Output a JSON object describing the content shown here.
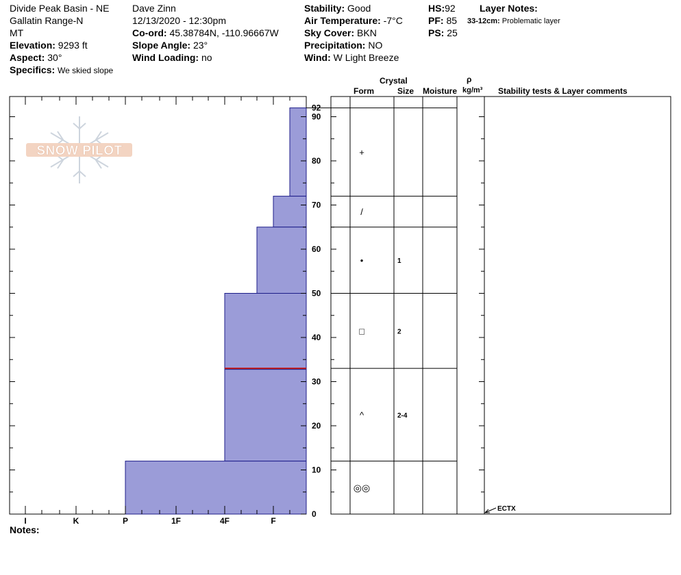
{
  "header": {
    "location": "Divide Peak Basin - NE",
    "range": "Gallatin Range-N",
    "state": "MT",
    "elevation_label": "Elevation:",
    "elevation_value": "9293 ft",
    "aspect_label": "Aspect:",
    "aspect_value": "30°",
    "specifics_label": "Specifics:",
    "specifics_value": "We skied slope",
    "observer": "Dave Zinn",
    "datetime": "12/13/2020 - 12:30pm",
    "coord_label": "Co-ord:",
    "coord_value": "45.38784N, -110.96667W",
    "slope_label": "Slope Angle:",
    "slope_value": "23°",
    "windload_label": "Wind Loading:",
    "windload_value": "no",
    "stability_label": "Stability:",
    "stability_value": "Good",
    "airtemp_label": "Air Temperature:",
    "airtemp_value": "-7°C",
    "sky_label": "Sky Cover:",
    "sky_value": "BKN",
    "precip_label": "Precipitation:",
    "precip_value": "NO",
    "wind_label": "Wind:",
    "wind_value": "W Light Breeze",
    "hs_label": "HS:",
    "hs_value": "92",
    "pf_label": "PF:",
    "pf_value": "85",
    "ps_label": "PS:",
    "ps_value": "25",
    "layer_notes_label": "Layer Notes:",
    "layer_note_range": "33-12cm:",
    "layer_note_text": "Problematic layer"
  },
  "logo": {
    "text": "SNOW PILOT"
  },
  "columns": {
    "crystal": "Crystal",
    "form": "Form",
    "size": "Size",
    "moisture": "Moisture",
    "rho": "ρ",
    "density_unit": "kg/m³",
    "stability": "Stability tests & Layer comments"
  },
  "notes_label": "Notes:",
  "chart_data": {
    "type": "bar",
    "title": "",
    "xlabel": "",
    "ylabel": "",
    "hardness_categories": [
      "I",
      "K",
      "P",
      "1F",
      "4F",
      "F"
    ],
    "hardness_order_note": "I hardest on left, F softest on right",
    "ylim": [
      0,
      92
    ],
    "y_ticks": [
      0,
      10,
      20,
      30,
      40,
      50,
      60,
      70,
      80,
      90
    ],
    "hs_tick": "92",
    "layers": [
      {
        "top": 92,
        "bottom": 72,
        "hardness": "F-",
        "grain_form": "+",
        "grain_size": ""
      },
      {
        "top": 72,
        "bottom": 65,
        "hardness": "F",
        "grain_form": "/",
        "grain_size": ""
      },
      {
        "top": 65,
        "bottom": 50,
        "hardness": "F+",
        "grain_form": "•",
        "grain_size": "1"
      },
      {
        "top": 50,
        "bottom": 33,
        "hardness": "4F",
        "grain_form": "□",
        "grain_size": "2"
      },
      {
        "top": 33,
        "bottom": 12,
        "hardness": "4F",
        "grain_form": "^",
        "grain_size": "2-4"
      },
      {
        "top": 12,
        "bottom": 0,
        "hardness": "P",
        "grain_form": "◎◎",
        "grain_size": ""
      }
    ],
    "problem_layer_depth": 33,
    "tests": [
      {
        "label": "ECTX",
        "depth": 0
      }
    ],
    "colors": {
      "fill": "#9b9cd8",
      "edge": "#1c1c88",
      "problem_line": "#c0181a"
    }
  }
}
